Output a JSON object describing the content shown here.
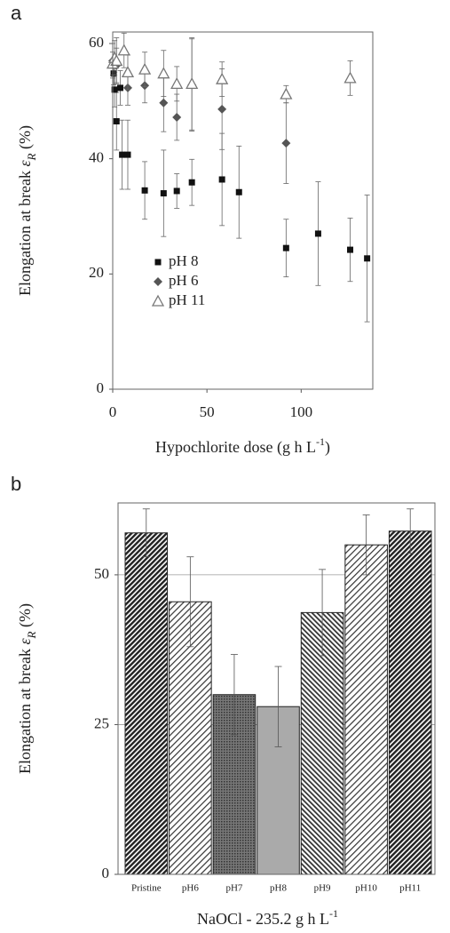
{
  "chart_data": [
    {
      "type": "scatter",
      "panel": "a",
      "xlabel": [
        "Hypochlorite dose (g h L",
        "-1",
        ")"
      ],
      "ylabel": [
        "Elongation at break ",
        "ε",
        "R",
        " (%)"
      ],
      "xlim": [
        0,
        138
      ],
      "xticks": [
        0,
        50,
        100
      ],
      "ylim": [
        0,
        62
      ],
      "yticks": [
        0,
        20,
        40,
        60
      ],
      "grid": false,
      "legend": "lower left",
      "series": [
        {
          "name": "pH 8",
          "marker": "square",
          "color": "#111111",
          "x": [
            0.5,
            1,
            2,
            4,
            5,
            8,
            17,
            27,
            34,
            42,
            58,
            67,
            92,
            109,
            126,
            135
          ],
          "values": [
            54.8,
            52,
            46.5,
            52.3,
            40.7,
            40.7,
            34.5,
            34,
            34.4,
            35.9,
            36.4,
            34.2,
            24.5,
            27,
            24.2,
            22.7
          ],
          "errors": [
            2,
            3,
            5,
            3,
            6,
            6,
            5,
            7.5,
            3,
            4,
            8,
            8,
            5,
            9,
            5.5,
            11
          ]
        },
        {
          "name": "pH 6",
          "marker": "diamond",
          "color": "#555555",
          "x": [
            0,
            2,
            8,
            17,
            27,
            34,
            42,
            58,
            92
          ],
          "values": [
            57,
            56.2,
            52.3,
            52.7,
            49.7,
            47.2,
            52.8,
            48.6,
            42.7
          ],
          "errors": [
            3,
            3,
            3,
            3,
            5,
            4,
            8,
            7,
            7
          ]
        },
        {
          "name": "pH 11",
          "marker": "triangle",
          "color": "#777777",
          "x": [
            0,
            1,
            2,
            6,
            8,
            17,
            27,
            34,
            42,
            58,
            92,
            126
          ],
          "values": [
            56.5,
            57.5,
            57,
            58.8,
            55,
            55.5,
            54.8,
            53,
            53,
            53.8,
            51.2,
            54
          ],
          "errors": [
            2,
            3,
            4,
            3,
            3,
            3,
            4,
            3,
            8,
            3,
            1.5,
            3
          ]
        }
      ]
    },
    {
      "type": "bar",
      "panel": "b",
      "xlabel": [
        "NaOCl - 235.2 g h L",
        "-1"
      ],
      "ylabel": [
        "Elongation at break ",
        "ε",
        "R",
        " (%)"
      ],
      "ylim": [
        0,
        62
      ],
      "yticks": [
        0,
        25,
        50
      ],
      "grid": true,
      "categories": [
        "Pristine",
        "pH6",
        "pH7",
        "pH8",
        "pH9",
        "pH10",
        "pH11"
      ],
      "values": [
        57,
        45.5,
        30,
        28,
        43.7,
        55,
        57.3
      ],
      "errors": [
        4,
        7.5,
        6.7,
        6.7,
        7.2,
        5,
        3.7
      ],
      "colors": [
        "#333333",
        "#dddddd",
        "#666666",
        "#aaaaaa",
        "#888888",
        "#dddddd",
        "#333333"
      ],
      "hatch": [
        "dense",
        "light",
        "dotted",
        "none",
        "medium",
        "light",
        "dense"
      ]
    }
  ]
}
